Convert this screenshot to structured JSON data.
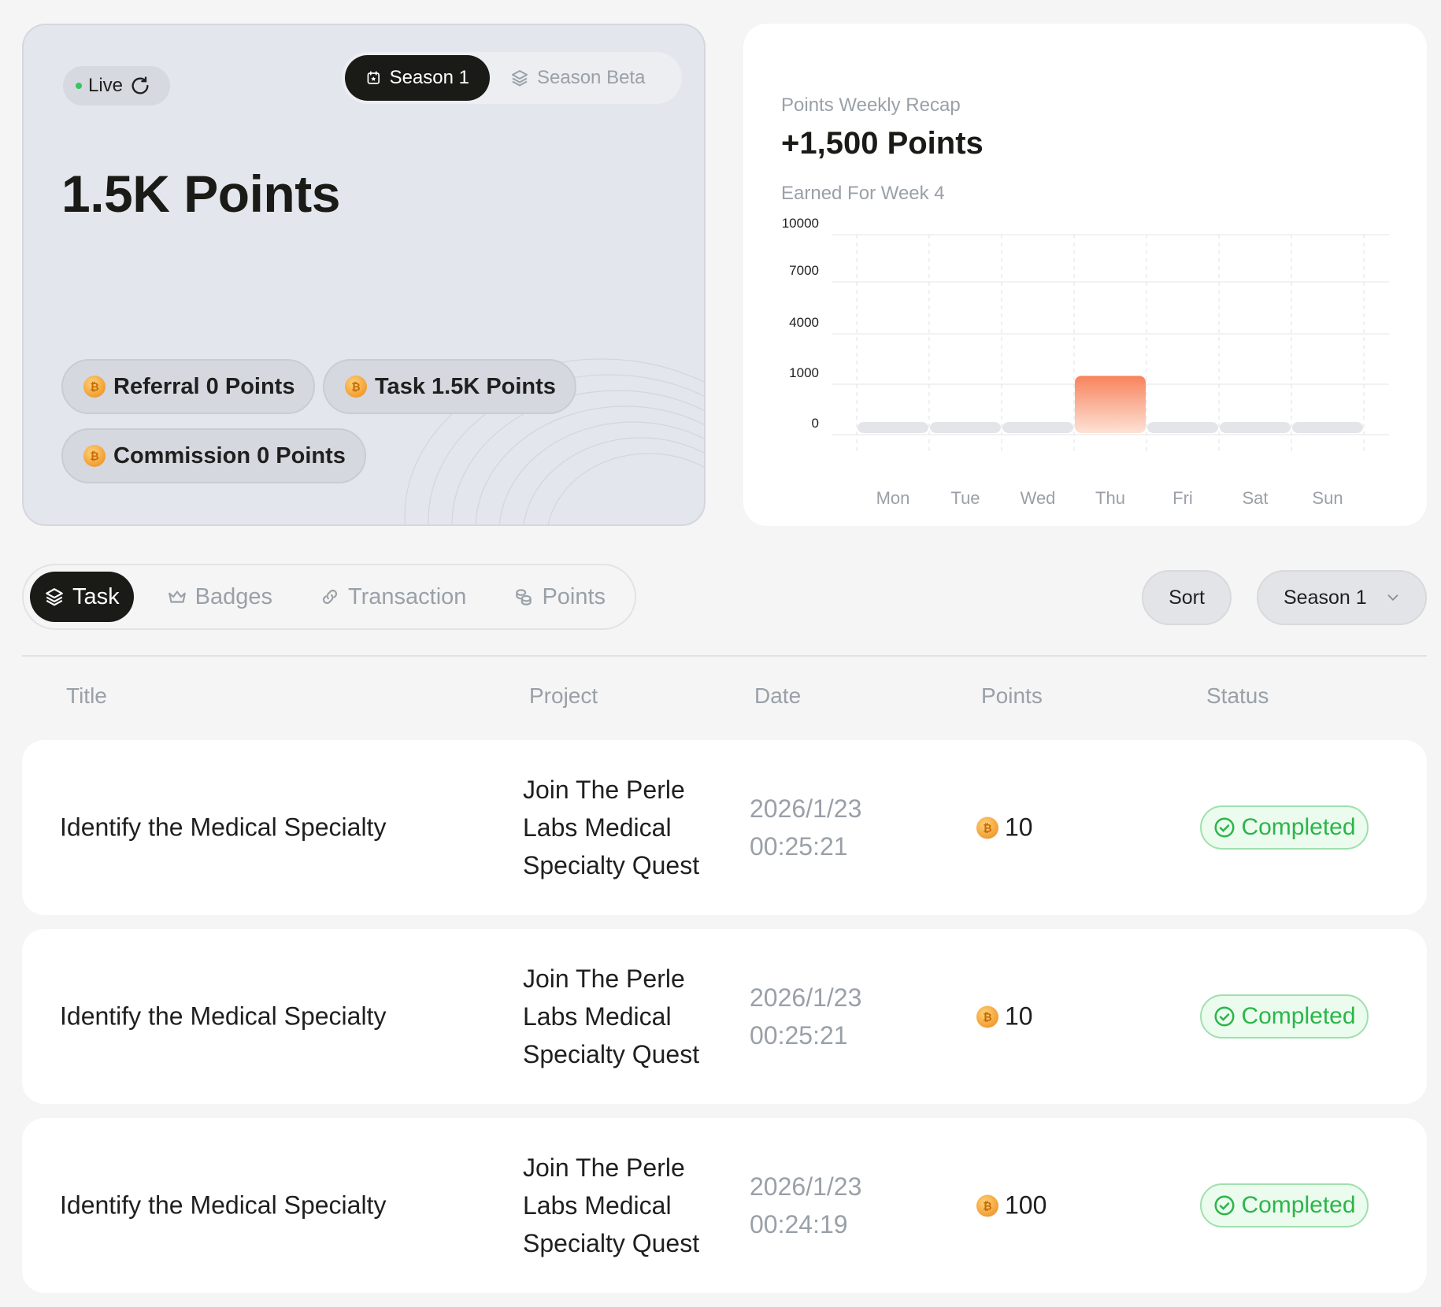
{
  "summary": {
    "live_label": "Live",
    "season_tabs": [
      {
        "label": "Season 1",
        "active": true
      },
      {
        "label": "Season Beta",
        "active": false
      }
    ],
    "total_points": "1.5K Points",
    "stats": [
      {
        "label": "Referral 0 Points"
      },
      {
        "label": "Task 1.5K Points"
      },
      {
        "label": "Commission 0 Points"
      }
    ]
  },
  "recap": {
    "subtitle": "Points Weekly Recap",
    "headline": "+1,500 Points",
    "week_label": "Earned For Week 4"
  },
  "chart_data": {
    "type": "bar",
    "categories": [
      "Mon",
      "Tue",
      "Wed",
      "Thu",
      "Fri",
      "Sat",
      "Sun"
    ],
    "values": [
      0,
      0,
      0,
      1500,
      0,
      0,
      0
    ],
    "y_ticks": [
      "0",
      "1000",
      "4000",
      "7000",
      "10000"
    ],
    "colors": {
      "highlight": "#f7835c",
      "base": "#e3e5e9"
    },
    "grid": true
  },
  "tabs": [
    {
      "label": "Task",
      "icon": "layers-icon",
      "active": true
    },
    {
      "label": "Badges",
      "icon": "crown-icon",
      "active": false
    },
    {
      "label": "Transaction",
      "icon": "link-icon",
      "active": false
    },
    {
      "label": "Points",
      "icon": "coins-icon",
      "active": false
    }
  ],
  "controls": {
    "sort_label": "Sort",
    "season_select": "Season 1"
  },
  "table": {
    "headers": [
      "Title",
      "Project",
      "Date",
      "Points",
      "Status"
    ],
    "rows": [
      {
        "title": "Identify the Medical Specialty",
        "project": "Join The Perle Labs Medical Specialty Quest",
        "date": "2026/1/23",
        "time": "00:25:21",
        "points": "10",
        "status": "Completed"
      },
      {
        "title": "Identify the Medical Specialty",
        "project": "Join The Perle Labs Medical Specialty Quest",
        "date": "2026/1/23",
        "time": "00:25:21",
        "points": "10",
        "status": "Completed"
      },
      {
        "title": "Identify the Medical Specialty",
        "project": "Join The Perle Labs Medical Specialty Quest",
        "date": "2026/1/23",
        "time": "00:24:19",
        "points": "100",
        "status": "Completed"
      }
    ]
  },
  "colors": {
    "status_green": "#2cb54a",
    "live_dot": "#34c759",
    "dark": "#1a1a16"
  }
}
